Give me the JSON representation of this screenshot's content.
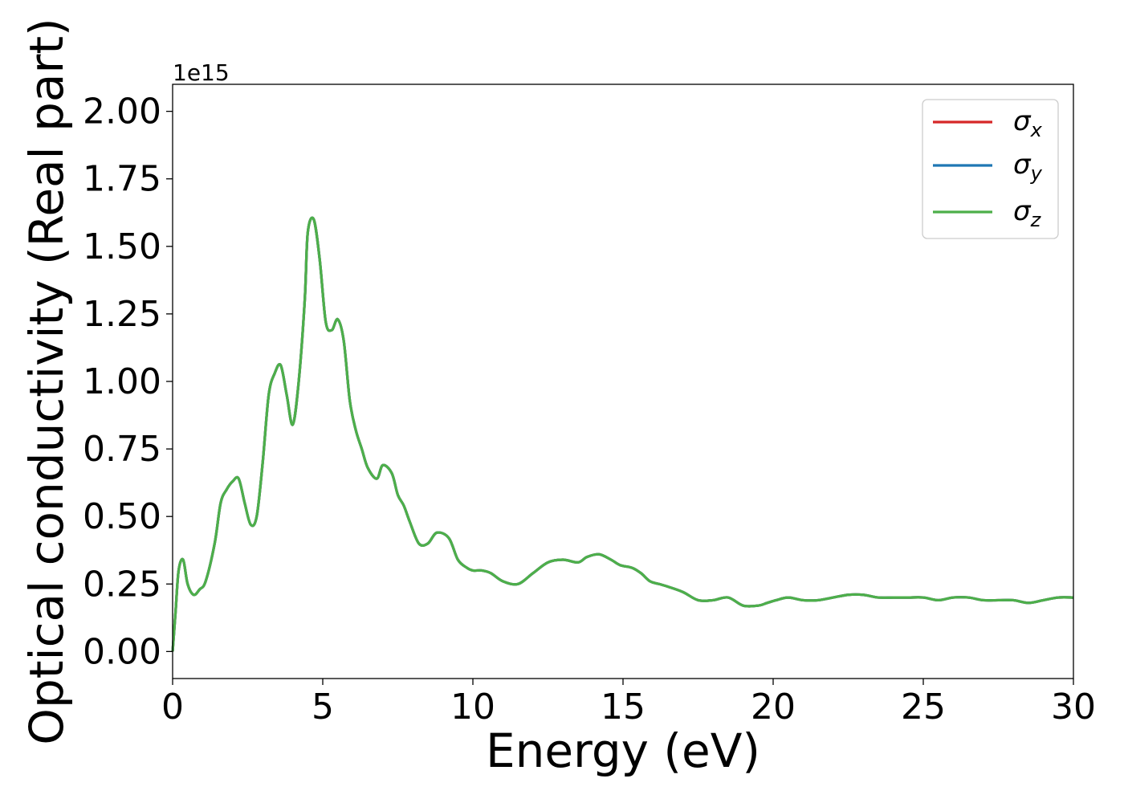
{
  "chart_data": {
    "type": "line",
    "xlabel": "Energy (eV)",
    "ylabel": "Optical conductivity (Real part)",
    "y_offset_text": "1e15",
    "y_multiplier": 1000000000000000.0,
    "xlim": [
      0,
      30
    ],
    "ylim": [
      -0.1,
      2.1
    ],
    "xticks": [
      0,
      5,
      10,
      15,
      20,
      25,
      30
    ],
    "xtick_labels": [
      "0",
      "5",
      "10",
      "15",
      "20",
      "25",
      "30"
    ],
    "yticks": [
      0.0,
      0.25,
      0.5,
      0.75,
      1.0,
      1.25,
      1.5,
      1.75,
      2.0
    ],
    "ytick_labels": [
      "0.00",
      "0.25",
      "0.50",
      "0.75",
      "1.00",
      "1.25",
      "1.50",
      "1.75",
      "2.00"
    ],
    "grid": false,
    "legend_position": "top-right",
    "series": [
      {
        "name": "σx",
        "symbol": "σ",
        "sub": "x",
        "color": "#d62728"
      },
      {
        "name": "σy",
        "symbol": "σ",
        "sub": "y",
        "color": "#1f77b4"
      },
      {
        "name": "σz",
        "symbol": "σ",
        "sub": "z",
        "color": "#4daf4a"
      }
    ],
    "x": [
      0,
      0.1,
      0.2,
      0.35,
      0.5,
      0.7,
      0.9,
      1.1,
      1.4,
      1.6,
      1.8,
      2.0,
      2.2,
      2.4,
      2.6,
      2.8,
      3.0,
      3.2,
      3.4,
      3.6,
      3.8,
      4.0,
      4.2,
      4.4,
      4.5,
      4.7,
      4.9,
      5.1,
      5.3,
      5.5,
      5.7,
      5.9,
      6.1,
      6.3,
      6.5,
      6.8,
      7.0,
      7.3,
      7.5,
      7.7,
      7.9,
      8.2,
      8.5,
      8.8,
      9.2,
      9.5,
      9.8,
      10.0,
      10.3,
      10.6,
      11.0,
      11.5,
      12.0,
      12.5,
      13.0,
      13.5,
      13.8,
      14.2,
      14.6,
      14.9,
      15.3,
      15.6,
      15.9,
      16.2,
      16.5,
      17.0,
      17.5,
      18.0,
      18.5,
      19.0,
      19.5,
      19.8,
      20.1,
      20.5,
      21.0,
      21.5,
      22.0,
      22.5,
      23.0,
      23.5,
      24.0,
      24.5,
      25.0,
      25.5,
      26.0,
      26.5,
      27.0,
      27.5,
      28.0,
      28.5,
      29.0,
      29.5,
      30.0
    ],
    "values": [
      0.0,
      0.15,
      0.3,
      0.34,
      0.25,
      0.21,
      0.23,
      0.26,
      0.4,
      0.55,
      0.6,
      0.63,
      0.64,
      0.55,
      0.47,
      0.5,
      0.7,
      0.95,
      1.03,
      1.06,
      0.95,
      0.84,
      1.0,
      1.3,
      1.55,
      1.6,
      1.45,
      1.22,
      1.19,
      1.23,
      1.15,
      0.93,
      0.82,
      0.75,
      0.68,
      0.64,
      0.69,
      0.66,
      0.58,
      0.54,
      0.48,
      0.4,
      0.4,
      0.44,
      0.42,
      0.34,
      0.31,
      0.3,
      0.3,
      0.29,
      0.26,
      0.25,
      0.29,
      0.33,
      0.34,
      0.33,
      0.35,
      0.36,
      0.34,
      0.32,
      0.31,
      0.29,
      0.26,
      0.25,
      0.24,
      0.22,
      0.19,
      0.19,
      0.2,
      0.17,
      0.17,
      0.18,
      0.19,
      0.2,
      0.19,
      0.19,
      0.2,
      0.21,
      0.21,
      0.2,
      0.2,
      0.2,
      0.2,
      0.19,
      0.2,
      0.2,
      0.19,
      0.19,
      0.19,
      0.18,
      0.19,
      0.2,
      0.2
    ]
  }
}
